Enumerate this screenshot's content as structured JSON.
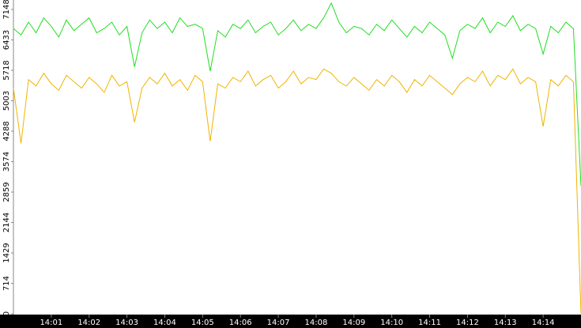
{
  "chart_data": {
    "type": "line",
    "x": [
      0,
      0.2,
      0.4,
      0.6,
      0.8,
      1,
      1.2,
      1.4,
      1.6,
      1.8,
      2,
      2.2,
      2.4,
      2.6,
      2.8,
      3,
      3.2,
      3.4,
      3.6,
      3.8,
      4,
      4.2,
      4.4,
      4.6,
      4.8,
      5,
      5.2,
      5.4,
      5.6,
      5.8,
      6,
      6.2,
      6.4,
      6.6,
      6.8,
      7,
      7.2,
      7.4,
      7.6,
      7.8,
      8,
      8.2,
      8.4,
      8.6,
      8.8,
      9,
      9.2,
      9.4,
      9.6,
      9.8,
      10,
      10.2,
      10.4,
      10.6,
      10.8,
      11,
      11.2,
      11.4,
      11.6,
      11.8,
      12,
      12.2,
      12.4,
      12.6,
      12.8,
      13,
      13.2,
      13.4,
      13.6,
      13.8,
      14,
      14.2,
      14.4,
      14.6,
      14.8,
      15
    ],
    "series": [
      {
        "color": "#22dd22",
        "values": [
          6700,
          6550,
          6850,
          6600,
          6950,
          6750,
          6500,
          6900,
          6650,
          6800,
          6950,
          6600,
          6700,
          6850,
          6550,
          6750,
          5800,
          6600,
          6900,
          6700,
          6850,
          6600,
          6950,
          6750,
          6800,
          6700,
          5700,
          6650,
          6500,
          6800,
          6700,
          6900,
          6600,
          6750,
          6850,
          6550,
          6700,
          6900,
          6650,
          6800,
          6700,
          6950,
          7300,
          6850,
          6600,
          6750,
          6700,
          6550,
          6800,
          6650,
          6900,
          6700,
          6500,
          6750,
          6600,
          6850,
          6700,
          6550,
          6000,
          6650,
          6800,
          6700,
          6950,
          6600,
          6850,
          6750,
          7000,
          6650,
          6800,
          6700,
          6100,
          6750,
          6600,
          6850,
          6700,
          3000
        ]
      },
      {
        "color": "#f0b400",
        "values": [
          5300,
          4000,
          5500,
          5350,
          5650,
          5400,
          5250,
          5600,
          5450,
          5300,
          5550,
          5400,
          5200,
          5600,
          5350,
          5450,
          4500,
          5300,
          5550,
          5400,
          5650,
          5350,
          5500,
          5250,
          5600,
          5450,
          4050,
          5400,
          5300,
          5550,
          5450,
          5700,
          5350,
          5500,
          5600,
          5300,
          5450,
          5700,
          5400,
          5550,
          5500,
          5750,
          5650,
          5450,
          5350,
          5550,
          5400,
          5250,
          5500,
          5350,
          5600,
          5450,
          5200,
          5500,
          5350,
          5600,
          5450,
          5300,
          5150,
          5400,
          5550,
          5450,
          5700,
          5350,
          5600,
          5500,
          5750,
          5400,
          5550,
          5450,
          4400,
          5500,
          5350,
          5600,
          5450,
          0
        ]
      }
    ],
    "xlim": [
      0,
      15
    ],
    "xticks": [
      {
        "value": 1,
        "label": "14:01"
      },
      {
        "value": 2,
        "label": "14:02"
      },
      {
        "value": 3,
        "label": "14:03"
      },
      {
        "value": 4,
        "label": "14:04"
      },
      {
        "value": 5,
        "label": "14:05"
      },
      {
        "value": 6,
        "label": "14:06"
      },
      {
        "value": 7,
        "label": "14:07"
      },
      {
        "value": 8,
        "label": "14:08"
      },
      {
        "value": 9,
        "label": "14:09"
      },
      {
        "value": 10,
        "label": "14:10"
      },
      {
        "value": 11,
        "label": "14:11"
      },
      {
        "value": 12,
        "label": "14:12"
      },
      {
        "value": 13,
        "label": "14:13"
      },
      {
        "value": 14,
        "label": "14:14"
      }
    ],
    "ylim": [
      0,
      7370
    ],
    "yticks": [
      0,
      714,
      1429,
      2144,
      2859,
      3574,
      4288,
      5003,
      5718,
      6433,
      7148
    ]
  }
}
